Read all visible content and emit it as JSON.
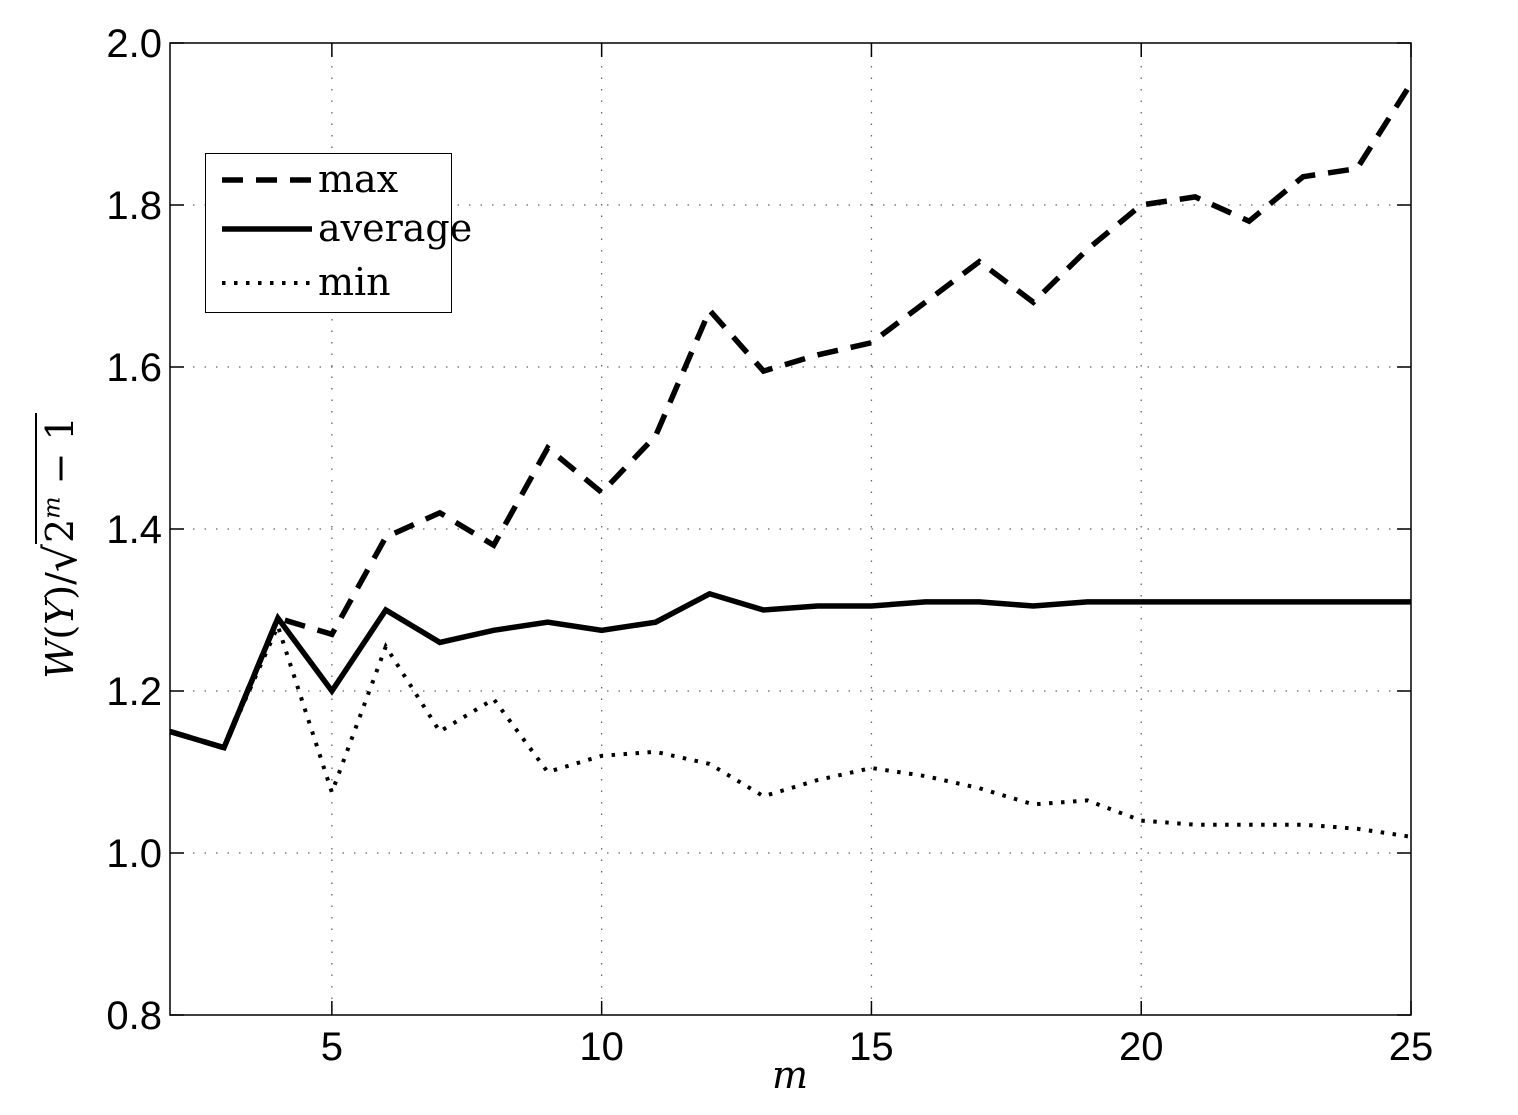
{
  "figure": {
    "background": "#ffffff",
    "line_color": "#000000",
    "xlabel": "m",
    "ylabel_plain": "W(Y)/sqrt(2^m - 1)",
    "ylabel_parts": {
      "w": "W",
      "open": "(",
      "y": "Y",
      "close": ")",
      "slash": "/",
      "sqrt": "√",
      "base": "2",
      "exp": "m",
      "rest": "− 1"
    }
  },
  "chart_data": {
    "type": "line",
    "title": "",
    "xlabel": "m",
    "ylabel": "W(Y)/sqrt(2^m - 1)",
    "xlim": [
      2,
      25
    ],
    "ylim": [
      0.8,
      2.0
    ],
    "grid": true,
    "legend_position": "upper-left",
    "xticks": [
      5,
      10,
      15,
      20,
      25
    ],
    "xtick_labels": [
      "5",
      "10",
      "15",
      "20",
      "25"
    ],
    "yticks": [
      0.8,
      1.0,
      1.2,
      1.4,
      1.6,
      1.8,
      2.0
    ],
    "ytick_labels": [
      "0.8",
      "1.0",
      "1.2",
      "1.4",
      "1.6",
      "1.8",
      "2.0"
    ],
    "x": [
      2,
      3,
      4,
      5,
      6,
      7,
      8,
      9,
      10,
      11,
      12,
      13,
      14,
      15,
      16,
      17,
      18,
      19,
      20,
      21,
      22,
      23,
      24,
      25
    ],
    "series": [
      {
        "name": "max",
        "style": "dashed",
        "color": "#000000",
        "values": [
          1.15,
          1.13,
          1.29,
          1.27,
          1.39,
          1.42,
          1.38,
          1.5,
          1.445,
          1.515,
          1.67,
          1.595,
          1.615,
          1.63,
          1.68,
          1.73,
          1.68,
          1.745,
          1.8,
          1.81,
          1.78,
          1.835,
          1.845,
          1.95
        ]
      },
      {
        "name": "average",
        "style": "solid",
        "color": "#000000",
        "values": [
          1.15,
          1.13,
          1.29,
          1.2,
          1.3,
          1.26,
          1.275,
          1.285,
          1.275,
          1.285,
          1.32,
          1.3,
          1.305,
          1.305,
          1.31,
          1.31,
          1.305,
          1.31,
          1.31,
          1.31,
          1.31,
          1.31,
          1.31,
          1.31
        ]
      },
      {
        "name": "min",
        "style": "dotted",
        "color": "#000000",
        "values": [
          1.15,
          1.13,
          1.28,
          1.075,
          1.255,
          1.15,
          1.19,
          1.1,
          1.12,
          1.125,
          1.11,
          1.07,
          1.09,
          1.105,
          1.095,
          1.08,
          1.06,
          1.065,
          1.04,
          1.035,
          1.035,
          1.035,
          1.03,
          1.02
        ]
      }
    ]
  }
}
